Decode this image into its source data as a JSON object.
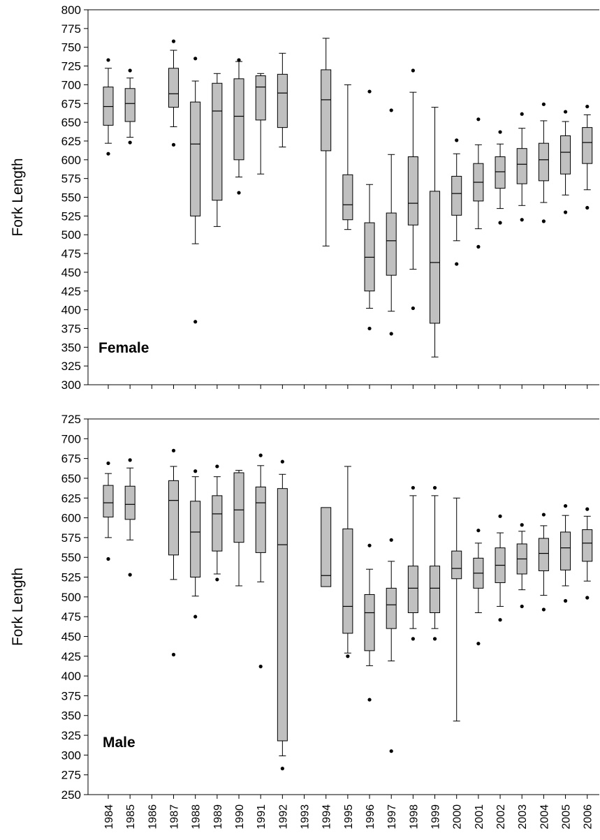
{
  "chart_data": [
    {
      "type": "boxplot",
      "ylabel": "Fork Length",
      "panel_label": "Female",
      "ylim": [
        300,
        800
      ],
      "yticks": [
        300,
        325,
        350,
        375,
        400,
        425,
        450,
        475,
        500,
        525,
        550,
        575,
        600,
        625,
        650,
        675,
        700,
        725,
        750,
        775,
        800
      ],
      "categories": [
        "1984",
        "1985",
        "1986",
        "1987",
        "1988",
        "1989",
        "1990",
        "1991",
        "1992",
        "1993",
        "1994",
        "1995",
        "1996",
        "1997",
        "1998",
        "1999",
        "2000",
        "2001",
        "2002",
        "2003",
        "2004",
        "2005",
        "2006"
      ],
      "box_fill": "#c0c0c0",
      "boxes": [
        {
          "x": "1984",
          "whislo": 622,
          "q1": 646,
          "med": 671,
          "q3": 697,
          "whishi": 722,
          "fliers": [
            608,
            733
          ]
        },
        {
          "x": "1985",
          "whislo": 630,
          "q1": 651,
          "med": 675,
          "q3": 695,
          "whishi": 709,
          "fliers": [
            623,
            719
          ]
        },
        {
          "x": "1986"
        },
        {
          "x": "1987",
          "whislo": 644,
          "q1": 670,
          "med": 688,
          "q3": 722,
          "whishi": 746,
          "fliers": [
            620,
            758
          ]
        },
        {
          "x": "1988",
          "whislo": 488,
          "q1": 525,
          "med": 621,
          "q3": 677,
          "whishi": 705,
          "fliers": [
            384,
            735
          ]
        },
        {
          "x": "1989",
          "whislo": 511,
          "q1": 546,
          "med": 665,
          "q3": 702,
          "whishi": 715,
          "fliers": []
        },
        {
          "x": "1990",
          "whislo": 577,
          "q1": 600,
          "med": 658,
          "q3": 708,
          "whishi": 731,
          "fliers": [
            556,
            733
          ]
        },
        {
          "x": "1991",
          "whislo": 581,
          "q1": 653,
          "med": 697,
          "q3": 712,
          "whishi": 715,
          "fliers": []
        },
        {
          "x": "1992",
          "whislo": 617,
          "q1": 643,
          "med": 689,
          "q3": 714,
          "whishi": 742,
          "fliers": []
        },
        {
          "x": "1993"
        },
        {
          "x": "1994",
          "whislo": 485,
          "q1": 612,
          "med": 680,
          "q3": 720,
          "whishi": 762,
          "fliers": []
        },
        {
          "x": "1995",
          "whislo": 507,
          "q1": 520,
          "med": 540,
          "q3": 580,
          "whishi": 700,
          "fliers": []
        },
        {
          "x": "1996",
          "whislo": 402,
          "q1": 425,
          "med": 470,
          "q3": 516,
          "whishi": 567,
          "fliers": [
            375,
            691
          ]
        },
        {
          "x": "1997",
          "whislo": 398,
          "q1": 446,
          "med": 492,
          "q3": 529,
          "whishi": 607,
          "fliers": [
            368,
            666
          ]
        },
        {
          "x": "1998",
          "whislo": 454,
          "q1": 513,
          "med": 542,
          "q3": 604,
          "whishi": 690,
          "fliers": [
            402,
            719
          ]
        },
        {
          "x": "1999",
          "whislo": 337,
          "q1": 382,
          "med": 463,
          "q3": 558,
          "whishi": 670,
          "fliers": []
        },
        {
          "x": "2000",
          "whislo": 492,
          "q1": 526,
          "med": 555,
          "q3": 578,
          "whishi": 608,
          "fliers": [
            461,
            626
          ]
        },
        {
          "x": "2001",
          "whislo": 508,
          "q1": 545,
          "med": 570,
          "q3": 595,
          "whishi": 620,
          "fliers": [
            484,
            654
          ]
        },
        {
          "x": "2002",
          "whislo": 535,
          "q1": 562,
          "med": 584,
          "q3": 604,
          "whishi": 621,
          "fliers": [
            516,
            637
          ]
        },
        {
          "x": "2003",
          "whislo": 539,
          "q1": 568,
          "med": 594,
          "q3": 615,
          "whishi": 642,
          "fliers": [
            520,
            661
          ]
        },
        {
          "x": "2004",
          "whislo": 543,
          "q1": 572,
          "med": 600,
          "q3": 622,
          "whishi": 652,
          "fliers": [
            518,
            674
          ]
        },
        {
          "x": "2005",
          "whislo": 553,
          "q1": 581,
          "med": 610,
          "q3": 632,
          "whishi": 651,
          "fliers": [
            530,
            664
          ]
        },
        {
          "x": "2006",
          "whislo": 560,
          "q1": 595,
          "med": 623,
          "q3": 643,
          "whishi": 660,
          "fliers": [
            536,
            671
          ]
        }
      ]
    },
    {
      "type": "boxplot",
      "ylabel": "Fork Length",
      "panel_label": "Male",
      "ylim": [
        250,
        725
      ],
      "yticks": [
        250,
        275,
        300,
        325,
        350,
        375,
        400,
        425,
        450,
        475,
        500,
        525,
        550,
        575,
        600,
        625,
        650,
        675,
        700,
        725
      ],
      "categories": [
        "1984",
        "1985",
        "1986",
        "1987",
        "1988",
        "1989",
        "1990",
        "1991",
        "1992",
        "1993",
        "1994",
        "1995",
        "1996",
        "1997",
        "1998",
        "1999",
        "2000",
        "2001",
        "2002",
        "2003",
        "2004",
        "2005",
        "2006"
      ],
      "box_fill": "#c0c0c0",
      "boxes": [
        {
          "x": "1984",
          "whislo": 575,
          "q1": 601,
          "med": 619,
          "q3": 641,
          "whishi": 656,
          "fliers": [
            548,
            669
          ]
        },
        {
          "x": "1985",
          "whislo": 572,
          "q1": 598,
          "med": 617,
          "q3": 640,
          "whishi": 663,
          "fliers": [
            528,
            673
          ]
        },
        {
          "x": "1986"
        },
        {
          "x": "1987",
          "whislo": 522,
          "q1": 553,
          "med": 622,
          "q3": 647,
          "whishi": 665,
          "fliers": [
            427,
            685
          ]
        },
        {
          "x": "1988",
          "whislo": 501,
          "q1": 525,
          "med": 582,
          "q3": 621,
          "whishi": 652,
          "fliers": [
            475,
            659
          ]
        },
        {
          "x": "1989",
          "whislo": 529,
          "q1": 558,
          "med": 605,
          "q3": 628,
          "whishi": 652,
          "fliers": [
            522,
            665
          ]
        },
        {
          "x": "1990",
          "whislo": 514,
          "q1": 569,
          "med": 610,
          "q3": 657,
          "whishi": 660,
          "fliers": []
        },
        {
          "x": "1991",
          "whislo": 519,
          "q1": 556,
          "med": 619,
          "q3": 639,
          "whishi": 666,
          "fliers": [
            412,
            679
          ]
        },
        {
          "x": "1992",
          "whislo": 299,
          "q1": 318,
          "med": 566,
          "q3": 637,
          "whishi": 655,
          "fliers": [
            283,
            671
          ]
        },
        {
          "x": "1993"
        },
        {
          "x": "1994",
          "q1": 513,
          "med": 527,
          "q3": 613,
          "fliers": []
        },
        {
          "x": "1995",
          "whislo": 429,
          "q1": 454,
          "med": 488,
          "q3": 586,
          "whishi": 665,
          "fliers": [
            425
          ]
        },
        {
          "x": "1996",
          "whislo": 413,
          "q1": 432,
          "med": 480,
          "q3": 503,
          "whishi": 535,
          "fliers": [
            370,
            565
          ]
        },
        {
          "x": "1997",
          "whislo": 419,
          "q1": 460,
          "med": 490,
          "q3": 511,
          "whishi": 545,
          "fliers": [
            305,
            572
          ]
        },
        {
          "x": "1998",
          "whislo": 460,
          "q1": 480,
          "med": 511,
          "q3": 539,
          "whishi": 628,
          "fliers": [
            447,
            638
          ]
        },
        {
          "x": "1999",
          "whislo": 460,
          "q1": 480,
          "med": 511,
          "q3": 539,
          "whishi": 628,
          "fliers": [
            447,
            638
          ]
        },
        {
          "x": "2000",
          "whislo": 343,
          "q1": 523,
          "med": 536,
          "q3": 558,
          "whishi": 625,
          "fliers": []
        },
        {
          "x": "2001",
          "whislo": 480,
          "q1": 511,
          "med": 530,
          "q3": 549,
          "whishi": 568,
          "fliers": [
            441,
            584
          ]
        },
        {
          "x": "2002",
          "whislo": 488,
          "q1": 518,
          "med": 540,
          "q3": 562,
          "whishi": 581,
          "fliers": [
            471,
            602
          ]
        },
        {
          "x": "2003",
          "whislo": 509,
          "q1": 529,
          "med": 548,
          "q3": 567,
          "whishi": 583,
          "fliers": [
            488,
            591
          ]
        },
        {
          "x": "2004",
          "whislo": 502,
          "q1": 533,
          "med": 555,
          "q3": 574,
          "whishi": 590,
          "fliers": [
            484,
            604
          ]
        },
        {
          "x": "2005",
          "whislo": 514,
          "q1": 534,
          "med": 562,
          "q3": 582,
          "whishi": 603,
          "fliers": [
            495,
            615
          ]
        },
        {
          "x": "2006",
          "whislo": 520,
          "q1": 545,
          "med": 568,
          "q3": 585,
          "whishi": 602,
          "fliers": [
            499,
            611
          ]
        }
      ]
    }
  ]
}
